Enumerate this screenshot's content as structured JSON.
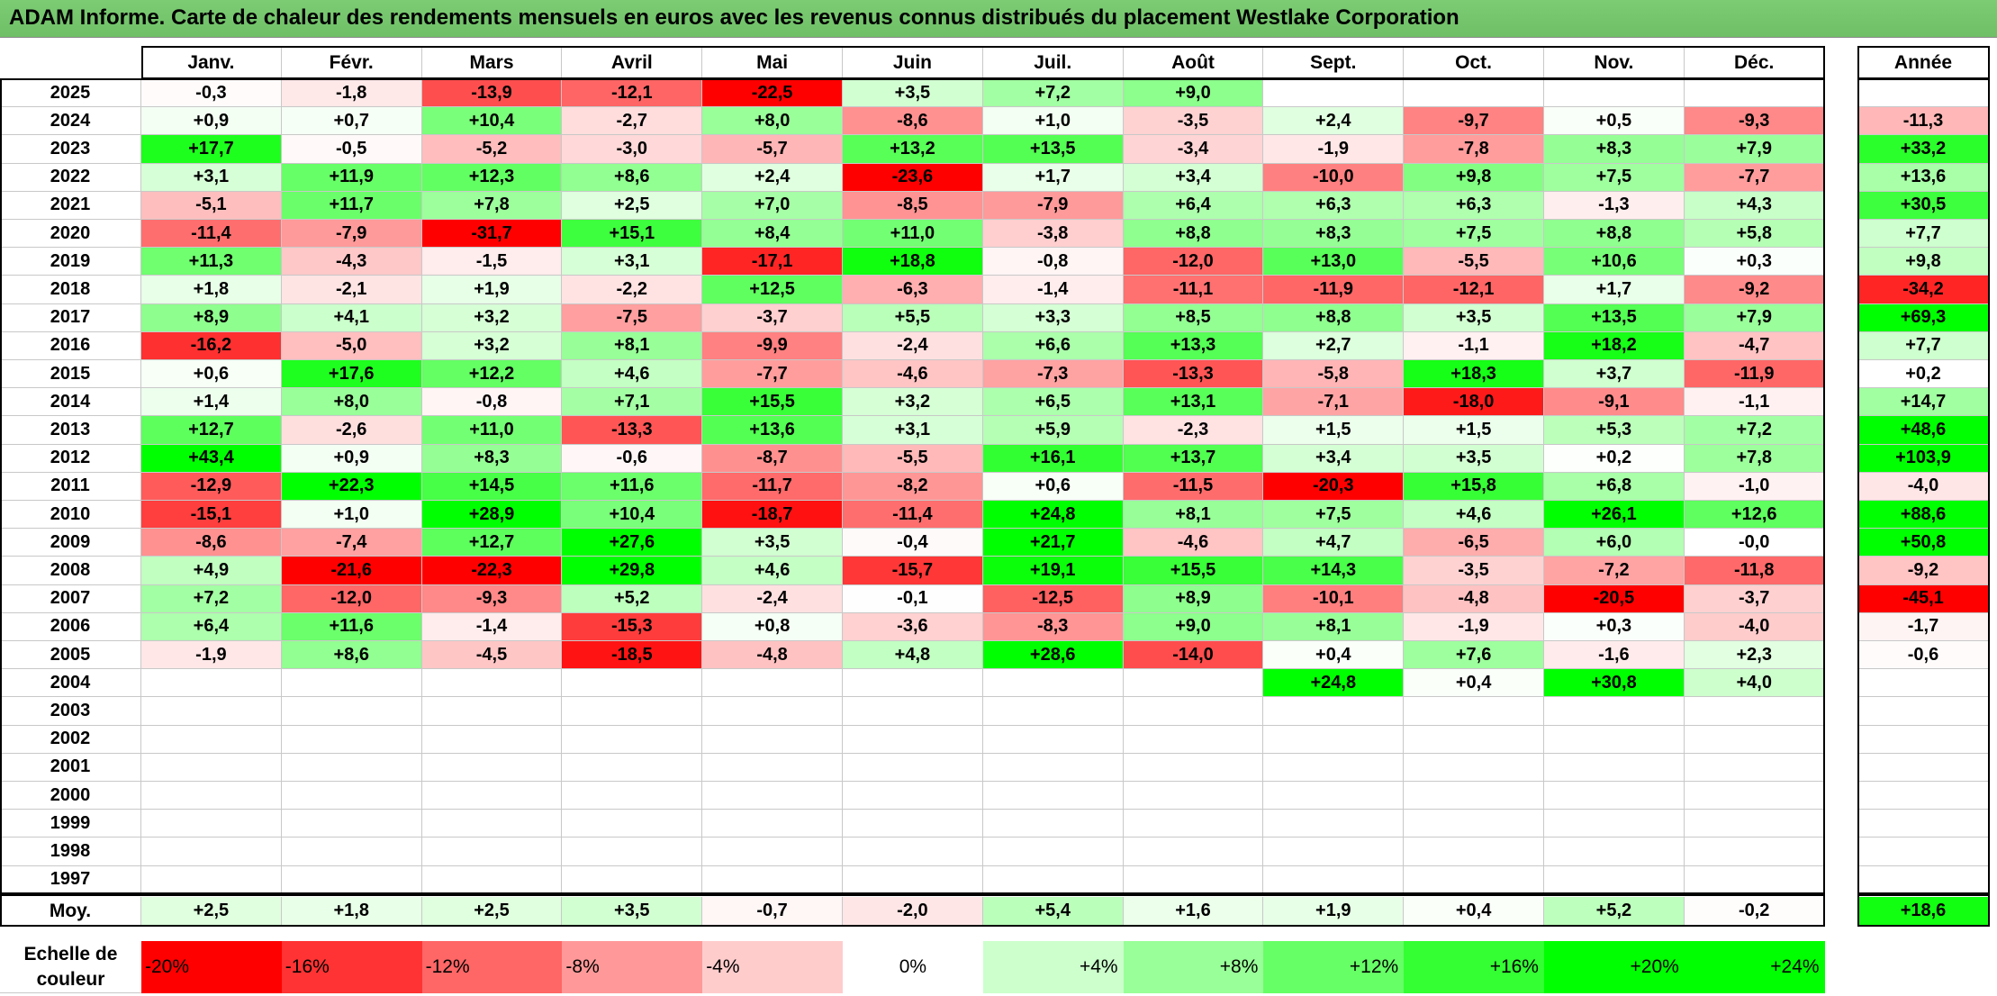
{
  "title": "ADAM Informe. Carte de chaleur des rendements mensuels en euros avec les revenus connus distribués du placement Westlake Corporation",
  "chart_data": {
    "type": "heatmap",
    "title": "ADAM Informe. Carte de chaleur des rendements mensuels en euros avec les revenus connus distribués du placement Westlake Corporation",
    "columns": [
      "Janv.",
      "Févr.",
      "Mars",
      "Avril",
      "Mai",
      "Juin",
      "Juil.",
      "Août",
      "Sept.",
      "Oct.",
      "Nov.",
      "Déc."
    ],
    "year_column_label": "Année",
    "rows": [
      {
        "year": "2025",
        "values": [
          "-0,3",
          "-1,8",
          "-13,9",
          "-12,1",
          "-22,5",
          "+3,5",
          "+7,2",
          "+9,0",
          "",
          "",
          "",
          ""
        ],
        "annual": ""
      },
      {
        "year": "2024",
        "values": [
          "+0,9",
          "+0,7",
          "+10,4",
          "-2,7",
          "+8,0",
          "-8,6",
          "+1,0",
          "-3,5",
          "+2,4",
          "-9,7",
          "+0,5",
          "-9,3"
        ],
        "annual": "-11,3"
      },
      {
        "year": "2023",
        "values": [
          "+17,7",
          "-0,5",
          "-5,2",
          "-3,0",
          "-5,7",
          "+13,2",
          "+13,5",
          "-3,4",
          "-1,9",
          "-7,8",
          "+8,3",
          "+7,9"
        ],
        "annual": "+33,2"
      },
      {
        "year": "2022",
        "values": [
          "+3,1",
          "+11,9",
          "+12,3",
          "+8,6",
          "+2,4",
          "-23,6",
          "+1,7",
          "+3,4",
          "-10,0",
          "+9,8",
          "+7,5",
          "-7,7"
        ],
        "annual": "+13,6"
      },
      {
        "year": "2021",
        "values": [
          "-5,1",
          "+11,7",
          "+7,8",
          "+2,5",
          "+7,0",
          "-8,5",
          "-7,9",
          "+6,4",
          "+6,3",
          "+6,3",
          "-1,3",
          "+4,3"
        ],
        "annual": "+30,5"
      },
      {
        "year": "2020",
        "values": [
          "-11,4",
          "-7,9",
          "-31,7",
          "+15,1",
          "+8,4",
          "+11,0",
          "-3,8",
          "+8,8",
          "+8,3",
          "+7,5",
          "+8,8",
          "+5,8"
        ],
        "annual": "+7,7"
      },
      {
        "year": "2019",
        "values": [
          "+11,3",
          "-4,3",
          "-1,5",
          "+3,1",
          "-17,1",
          "+18,8",
          "-0,8",
          "-12,0",
          "+13,0",
          "-5,5",
          "+10,6",
          "+0,3"
        ],
        "annual": "+9,8"
      },
      {
        "year": "2018",
        "values": [
          "+1,8",
          "-2,1",
          "+1,9",
          "-2,2",
          "+12,5",
          "-6,3",
          "-1,4",
          "-11,1",
          "-11,9",
          "-12,1",
          "+1,7",
          "-9,2"
        ],
        "annual": "-34,2"
      },
      {
        "year": "2017",
        "values": [
          "+8,9",
          "+4,1",
          "+3,2",
          "-7,5",
          "-3,7",
          "+5,5",
          "+3,3",
          "+8,5",
          "+8,8",
          "+3,5",
          "+13,5",
          "+7,9"
        ],
        "annual": "+69,3"
      },
      {
        "year": "2016",
        "values": [
          "-16,2",
          "-5,0",
          "+3,2",
          "+8,1",
          "-9,9",
          "-2,4",
          "+6,6",
          "+13,3",
          "+2,7",
          "-1,1",
          "+18,2",
          "-4,7"
        ],
        "annual": "+7,7"
      },
      {
        "year": "2015",
        "values": [
          "+0,6",
          "+17,6",
          "+12,2",
          "+4,6",
          "-7,7",
          "-4,6",
          "-7,3",
          "-13,3",
          "-5,8",
          "+18,3",
          "+3,7",
          "-11,9"
        ],
        "annual": "+0,2"
      },
      {
        "year": "2014",
        "values": [
          "+1,4",
          "+8,0",
          "-0,8",
          "+7,1",
          "+15,5",
          "+3,2",
          "+6,5",
          "+13,1",
          "-7,1",
          "-18,0",
          "-9,1",
          "-1,1"
        ],
        "annual": "+14,7"
      },
      {
        "year": "2013",
        "values": [
          "+12,7",
          "-2,6",
          "+11,0",
          "-13,3",
          "+13,6",
          "+3,1",
          "+5,9",
          "-2,3",
          "+1,5",
          "+1,5",
          "+5,3",
          "+7,2"
        ],
        "annual": "+48,6"
      },
      {
        "year": "2012",
        "values": [
          "+43,4",
          "+0,9",
          "+8,3",
          "-0,6",
          "-8,7",
          "-5,5",
          "+16,1",
          "+13,7",
          "+3,4",
          "+3,5",
          "+0,2",
          "+7,8"
        ],
        "annual": "+103,9"
      },
      {
        "year": "2011",
        "values": [
          "-12,9",
          "+22,3",
          "+14,5",
          "+11,6",
          "-11,7",
          "-8,2",
          "+0,6",
          "-11,5",
          "-20,3",
          "+15,8",
          "+6,8",
          "-1,0"
        ],
        "annual": "-4,0"
      },
      {
        "year": "2010",
        "values": [
          "-15,1",
          "+1,0",
          "+28,9",
          "+10,4",
          "-18,7",
          "-11,4",
          "+24,8",
          "+8,1",
          "+7,5",
          "+4,6",
          "+26,1",
          "+12,6"
        ],
        "annual": "+88,6"
      },
      {
        "year": "2009",
        "values": [
          "-8,6",
          "-7,4",
          "+12,7",
          "+27,6",
          "+3,5",
          "-0,4",
          "+21,7",
          "-4,6",
          "+4,7",
          "-6,5",
          "+6,0",
          "-0,0"
        ],
        "annual": "+50,8"
      },
      {
        "year": "2008",
        "values": [
          "+4,9",
          "-21,6",
          "-22,3",
          "+29,8",
          "+4,6",
          "-15,7",
          "+19,1",
          "+15,5",
          "+14,3",
          "-3,5",
          "-7,2",
          "-11,8"
        ],
        "annual": "-9,2"
      },
      {
        "year": "2007",
        "values": [
          "+7,2",
          "-12,0",
          "-9,3",
          "+5,2",
          "-2,4",
          "-0,1",
          "-12,5",
          "+8,9",
          "-10,1",
          "-4,8",
          "-20,5",
          "-3,7"
        ],
        "annual": "-45,1"
      },
      {
        "year": "2006",
        "values": [
          "+6,4",
          "+11,6",
          "-1,4",
          "-15,3",
          "+0,8",
          "-3,6",
          "-8,3",
          "+9,0",
          "+8,1",
          "-1,9",
          "+0,3",
          "-4,0"
        ],
        "annual": "-1,7"
      },
      {
        "year": "2005",
        "values": [
          "-1,9",
          "+8,6",
          "-4,5",
          "-18,5",
          "-4,8",
          "+4,8",
          "+28,6",
          "-14,0",
          "+0,4",
          "+7,6",
          "-1,6",
          "+2,3"
        ],
        "annual": "-0,6"
      },
      {
        "year": "2004",
        "values": [
          "",
          "",
          "",
          "",
          "",
          "",
          "",
          "",
          "+24,8",
          "+0,4",
          "+30,8",
          "+4,0"
        ],
        "annual": ""
      },
      {
        "year": "2003",
        "values": [
          "",
          "",
          "",
          "",
          "",
          "",
          "",
          "",
          "",
          "",
          "",
          ""
        ],
        "annual": ""
      },
      {
        "year": "2002",
        "values": [
          "",
          "",
          "",
          "",
          "",
          "",
          "",
          "",
          "",
          "",
          "",
          ""
        ],
        "annual": ""
      },
      {
        "year": "2001",
        "values": [
          "",
          "",
          "",
          "",
          "",
          "",
          "",
          "",
          "",
          "",
          "",
          ""
        ],
        "annual": ""
      },
      {
        "year": "2000",
        "values": [
          "",
          "",
          "",
          "",
          "",
          "",
          "",
          "",
          "",
          "",
          "",
          ""
        ],
        "annual": ""
      },
      {
        "year": "1999",
        "values": [
          "",
          "",
          "",
          "",
          "",
          "",
          "",
          "",
          "",
          "",
          "",
          ""
        ],
        "annual": ""
      },
      {
        "year": "1998",
        "values": [
          "",
          "",
          "",
          "",
          "",
          "",
          "",
          "",
          "",
          "",
          "",
          ""
        ],
        "annual": ""
      },
      {
        "year": "1997",
        "values": [
          "",
          "",
          "",
          "",
          "",
          "",
          "",
          "",
          "",
          "",
          "",
          ""
        ],
        "annual": ""
      }
    ],
    "average_row": {
      "label": "Moy.",
      "values": [
        "+2,5",
        "+1,8",
        "+2,5",
        "+3,5",
        "-0,7",
        "-2,0",
        "+5,4",
        "+1,6",
        "+1,9",
        "+0,4",
        "+5,2",
        "-0,2"
      ],
      "annual": "+18,6"
    },
    "color_scale": {
      "label": "Echelle de couleur",
      "steps": [
        "-20%",
        "-16%",
        "-12%",
        "-8%",
        "-4%",
        "0%",
        "+4%",
        "+8%",
        "+12%",
        "+16%",
        "+20%",
        "+24%"
      ],
      "step_values": [
        -20,
        -16,
        -12,
        -8,
        -4,
        0,
        4,
        8,
        12,
        16,
        20,
        24
      ],
      "colors": [
        "#ff0000",
        "#ff3333",
        "#ff6666",
        "#ff9999",
        "#ffcccc",
        "#ffffff",
        "#ccffcc",
        "#99ff99",
        "#66ff66",
        "#33ff33",
        "#00ff00",
        "#00ff00"
      ]
    },
    "negative_color": "#ff0000",
    "positive_color": "#00ff00",
    "neutral_color": "#ffffff"
  }
}
